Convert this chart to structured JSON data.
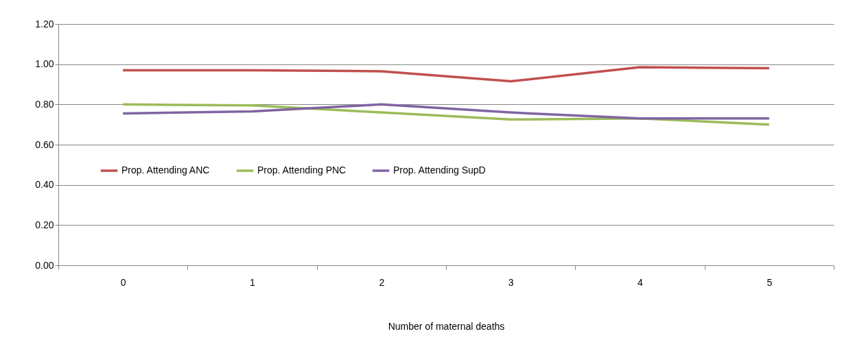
{
  "chart_data": {
    "type": "line",
    "xlabel": "Number of maternal deaths",
    "categories": [
      "0",
      "1",
      "2",
      "3",
      "4",
      "5"
    ],
    "series": [
      {
        "name": "Prop. Attending ANC",
        "color": "#c0504d",
        "values": [
          0.97,
          0.97,
          0.965,
          0.915,
          0.985,
          0.98
        ]
      },
      {
        "name": "Prop. Attending PNC",
        "color": "#9bbb59",
        "values": [
          0.8,
          0.795,
          0.76,
          0.725,
          0.73,
          0.7
        ]
      },
      {
        "name": "Prop. Attending SupD",
        "color": "#8064a2",
        "values": [
          0.755,
          0.765,
          0.8,
          0.76,
          0.73,
          0.73
        ]
      }
    ],
    "ylim": [
      0,
      1.2
    ],
    "yticks": [
      {
        "value": 0,
        "label": "0.00"
      },
      {
        "value": 0.2,
        "label": "0.20"
      },
      {
        "value": 0.4,
        "label": "0.40"
      },
      {
        "value": 0.6,
        "label": "0.60"
      },
      {
        "value": 0.8,
        "label": "0.80"
      },
      {
        "value": 1,
        "label": "1.00"
      },
      {
        "value": 1.2,
        "label": "1.20"
      }
    ],
    "grid": "y",
    "legend": "left",
    "marker": "none",
    "line_style": "solid"
  }
}
